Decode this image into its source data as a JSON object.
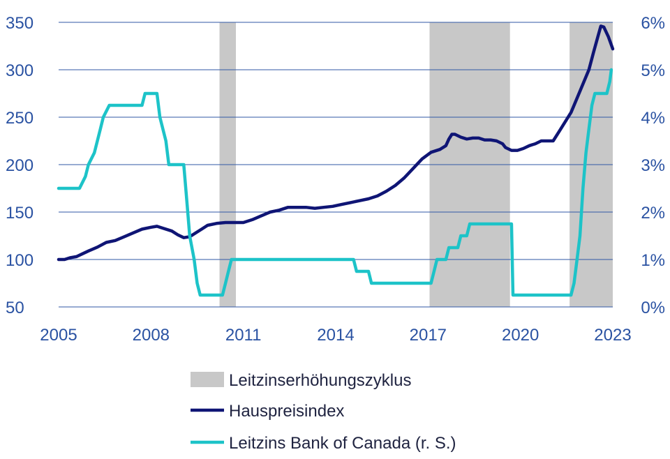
{
  "chart_data": {
    "type": "line",
    "x_ticks": [
      "2005",
      "2008",
      "2011",
      "2014",
      "2017",
      "2020",
      "2023"
    ],
    "y_left_ticks": [
      "50",
      "100",
      "150",
      "200",
      "250",
      "300",
      "350"
    ],
    "y_right_ticks": [
      "0%",
      "1%",
      "2%",
      "3%",
      "4%",
      "5%",
      "6%"
    ],
    "ylim_left": [
      50,
      350
    ],
    "ylim_right": [
      0,
      6
    ],
    "xlim": [
      2005.0,
      2023.6
    ],
    "grid": true,
    "legend_position": "bottom",
    "shaded_periods": [
      [
        2010.4,
        2010.95
      ],
      [
        2017.45,
        2020.15
      ],
      [
        2022.15,
        2023.6
      ]
    ],
    "series": [
      {
        "name": "Leitzinserhöhungszyklus",
        "kind": "band",
        "color": "#c8c8c8"
      },
      {
        "name": "Hauspreisindex",
        "kind": "line",
        "axis": "left",
        "color": "#0f1575",
        "points": [
          [
            2005.0,
            100
          ],
          [
            2005.2,
            100
          ],
          [
            2005.4,
            102
          ],
          [
            2005.6,
            103
          ],
          [
            2005.8,
            106
          ],
          [
            2006.0,
            109
          ],
          [
            2006.3,
            113
          ],
          [
            2006.6,
            118
          ],
          [
            2006.9,
            120
          ],
          [
            2007.2,
            124
          ],
          [
            2007.5,
            128
          ],
          [
            2007.8,
            132
          ],
          [
            2008.1,
            134
          ],
          [
            2008.3,
            135
          ],
          [
            2008.5,
            133
          ],
          [
            2008.8,
            130
          ],
          [
            2009.0,
            126
          ],
          [
            2009.2,
            123
          ],
          [
            2009.4,
            124
          ],
          [
            2009.6,
            128
          ],
          [
            2009.8,
            132
          ],
          [
            2010.0,
            136
          ],
          [
            2010.3,
            138
          ],
          [
            2010.6,
            139
          ],
          [
            2010.9,
            139
          ],
          [
            2011.2,
            139
          ],
          [
            2011.5,
            142
          ],
          [
            2011.8,
            146
          ],
          [
            2012.1,
            150
          ],
          [
            2012.4,
            152
          ],
          [
            2012.7,
            155
          ],
          [
            2013.0,
            155
          ],
          [
            2013.3,
            155
          ],
          [
            2013.6,
            154
          ],
          [
            2013.9,
            155
          ],
          [
            2014.2,
            156
          ],
          [
            2014.5,
            158
          ],
          [
            2014.8,
            160
          ],
          [
            2015.1,
            162
          ],
          [
            2015.4,
            164
          ],
          [
            2015.7,
            167
          ],
          [
            2016.0,
            172
          ],
          [
            2016.3,
            178
          ],
          [
            2016.6,
            186
          ],
          [
            2016.9,
            196
          ],
          [
            2017.2,
            206
          ],
          [
            2017.5,
            213
          ],
          [
            2017.8,
            216
          ],
          [
            2018.0,
            220
          ],
          [
            2018.1,
            227
          ],
          [
            2018.2,
            232
          ],
          [
            2018.3,
            232
          ],
          [
            2018.5,
            229
          ],
          [
            2018.7,
            227
          ],
          [
            2018.9,
            228
          ],
          [
            2019.1,
            228
          ],
          [
            2019.3,
            226
          ],
          [
            2019.5,
            226
          ],
          [
            2019.7,
            225
          ],
          [
            2019.9,
            222
          ],
          [
            2020.0,
            218
          ],
          [
            2020.2,
            215
          ],
          [
            2020.4,
            215
          ],
          [
            2020.6,
            217
          ],
          [
            2020.8,
            220
          ],
          [
            2021.0,
            222
          ],
          [
            2021.2,
            225
          ],
          [
            2021.4,
            225
          ],
          [
            2021.6,
            225
          ],
          [
            2021.8,
            235
          ],
          [
            2022.0,
            245
          ],
          [
            2022.2,
            255
          ],
          [
            2022.4,
            270
          ],
          [
            2022.6,
            285
          ],
          [
            2022.8,
            300
          ],
          [
            2022.95,
            318
          ],
          [
            2023.1,
            335
          ],
          [
            2023.2,
            346
          ],
          [
            2023.3,
            345
          ],
          [
            2023.45,
            335
          ],
          [
            2023.6,
            322
          ]
        ]
      },
      {
        "name": "Leitzins Bank of Canada (r. S.)",
        "kind": "step",
        "axis": "right",
        "color": "#1dc3c8",
        "points": [
          [
            2005.0,
            2.5
          ],
          [
            2005.7,
            2.5
          ],
          [
            2005.9,
            2.75
          ],
          [
            2006.0,
            3.0
          ],
          [
            2006.2,
            3.25
          ],
          [
            2006.3,
            3.5
          ],
          [
            2006.4,
            3.75
          ],
          [
            2006.5,
            4.0
          ],
          [
            2006.7,
            4.25
          ],
          [
            2007.8,
            4.25
          ],
          [
            2007.9,
            4.5
          ],
          [
            2008.3,
            4.5
          ],
          [
            2008.4,
            4.0
          ],
          [
            2008.6,
            3.5
          ],
          [
            2008.7,
            3.0
          ],
          [
            2009.2,
            3.0
          ],
          [
            2009.3,
            2.25
          ],
          [
            2009.4,
            1.5
          ],
          [
            2009.55,
            1.0
          ],
          [
            2009.65,
            0.5
          ],
          [
            2009.75,
            0.25
          ],
          [
            2010.5,
            0.25
          ],
          [
            2010.6,
            0.5
          ],
          [
            2010.7,
            0.75
          ],
          [
            2010.8,
            1.0
          ],
          [
            2014.9,
            1.0
          ],
          [
            2015.0,
            0.75
          ],
          [
            2015.4,
            0.75
          ],
          [
            2015.5,
            0.5
          ],
          [
            2017.5,
            0.5
          ],
          [
            2017.6,
            0.75
          ],
          [
            2017.7,
            1.0
          ],
          [
            2018.0,
            1.0
          ],
          [
            2018.1,
            1.25
          ],
          [
            2018.4,
            1.25
          ],
          [
            2018.5,
            1.5
          ],
          [
            2018.7,
            1.5
          ],
          [
            2018.8,
            1.75
          ],
          [
            2020.2,
            1.75
          ],
          [
            2020.25,
            0.25
          ],
          [
            2022.2,
            0.25
          ],
          [
            2022.3,
            0.5
          ],
          [
            2022.4,
            1.0
          ],
          [
            2022.5,
            1.5
          ],
          [
            2022.6,
            2.5
          ],
          [
            2022.7,
            3.25
          ],
          [
            2022.8,
            3.75
          ],
          [
            2022.9,
            4.25
          ],
          [
            2023.0,
            4.5
          ],
          [
            2023.4,
            4.5
          ],
          [
            2023.5,
            4.75
          ],
          [
            2023.55,
            5.0
          ]
        ]
      }
    ]
  }
}
